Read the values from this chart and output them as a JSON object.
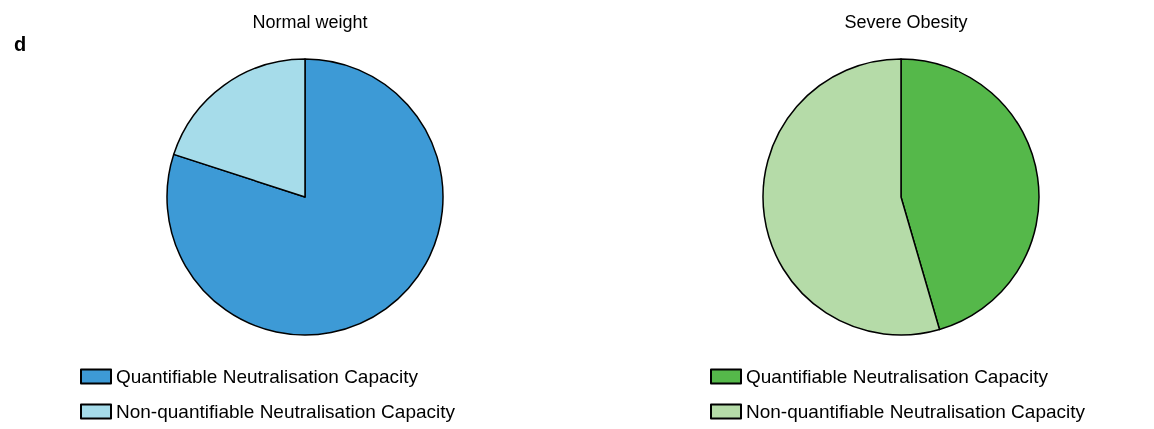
{
  "chart_data": [
    {
      "type": "pie",
      "title": "Normal weight",
      "annotations": [
        "d"
      ],
      "categories": [
        "Quantifiable Neutralisation Capacity",
        "Non-quantifiable Neutralisation Capacity"
      ],
      "values": [
        80,
        20
      ],
      "colors": [
        "#3d9ad6",
        "#a6dcea"
      ],
      "legend": "bottom"
    },
    {
      "type": "pie",
      "title": "Severe Obesity",
      "categories": [
        "Quantifiable Neutralisation Capacity",
        "Non-quantifiable Neutralisation Capacity"
      ],
      "values": [
        45.5,
        54.5
      ],
      "colors": [
        "#55b84a",
        "#b5dba8"
      ],
      "legend": "bottom"
    }
  ]
}
